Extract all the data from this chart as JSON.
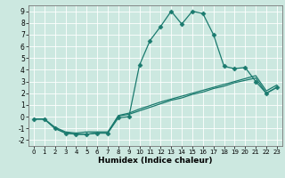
{
  "xlabel": "Humidex (Indice chaleur)",
  "bg_color": "#cce8e0",
  "grid_color": "#ffffff",
  "line_color": "#1a7a6e",
  "xlim": [
    -0.5,
    23.5
  ],
  "ylim": [
    -2.5,
    9.5
  ],
  "xticks": [
    0,
    1,
    2,
    3,
    4,
    5,
    6,
    7,
    8,
    9,
    10,
    11,
    12,
    13,
    14,
    15,
    16,
    17,
    18,
    19,
    20,
    21,
    22,
    23
  ],
  "yticks": [
    -2,
    -1,
    0,
    1,
    2,
    3,
    4,
    5,
    6,
    7,
    8,
    9
  ],
  "line1_x": [
    0,
    1,
    2,
    3,
    4,
    5,
    6,
    7,
    8,
    9,
    10,
    11,
    12,
    13,
    14,
    15,
    16,
    17,
    18,
    19,
    20,
    21,
    22,
    23
  ],
  "line1_y": [
    -0.2,
    -0.2,
    -1.0,
    -1.4,
    -1.5,
    -1.5,
    -1.4,
    -1.4,
    -0.1,
    0.0,
    4.4,
    6.5,
    7.7,
    9.0,
    7.9,
    9.0,
    8.8,
    7.0,
    4.3,
    4.1,
    4.2,
    3.0,
    2.0,
    2.5
  ],
  "line2_x": [
    0,
    1,
    2,
    3,
    4,
    5,
    6,
    7,
    8,
    9,
    10,
    11,
    12,
    13,
    14,
    15,
    16,
    17,
    18,
    19,
    20,
    21,
    22,
    23
  ],
  "line2_y": [
    -0.2,
    -0.2,
    -0.9,
    -1.3,
    -1.4,
    -1.3,
    -1.3,
    -1.3,
    0.05,
    0.2,
    0.5,
    0.8,
    1.1,
    1.4,
    1.6,
    1.9,
    2.1,
    2.4,
    2.6,
    2.9,
    3.1,
    3.3,
    2.0,
    2.5
  ],
  "line3_x": [
    0,
    1,
    2,
    3,
    4,
    5,
    6,
    7,
    8,
    9,
    10,
    11,
    12,
    13,
    14,
    15,
    16,
    17,
    18,
    19,
    20,
    21,
    22,
    23
  ],
  "line3_y": [
    -0.2,
    -0.2,
    -1.0,
    -1.4,
    -1.5,
    -1.5,
    -1.4,
    -1.4,
    0.1,
    0.3,
    0.65,
    0.95,
    1.25,
    1.5,
    1.75,
    2.0,
    2.25,
    2.5,
    2.75,
    3.0,
    3.25,
    3.5,
    2.2,
    2.7
  ]
}
